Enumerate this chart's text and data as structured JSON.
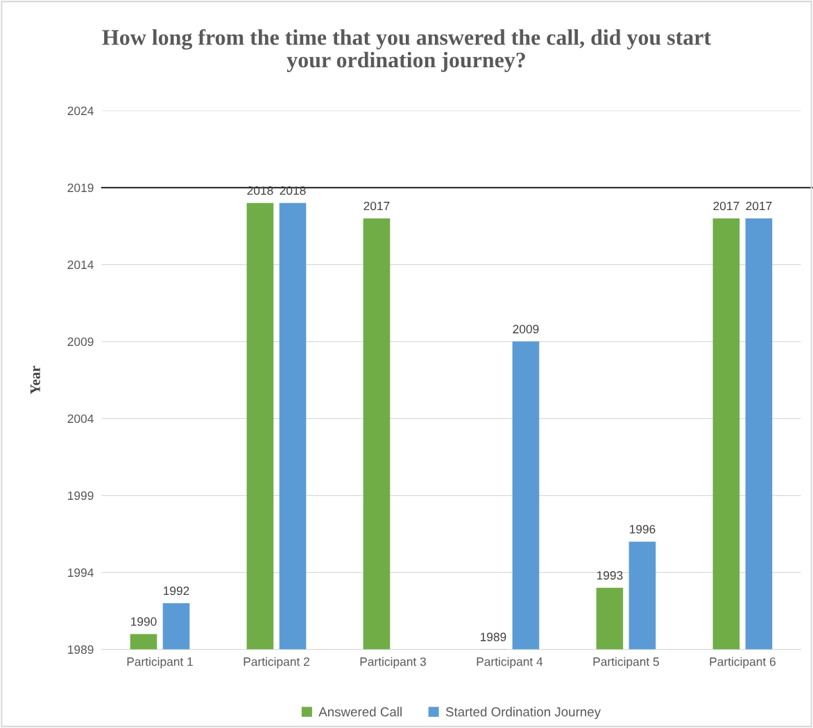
{
  "chart_data": {
    "type": "bar",
    "title": "How long from the time that you answered the call, did you start\nyour ordination journey?",
    "ylabel": "Year",
    "categories": [
      "Participant 1",
      "Participant 2",
      "Participant 3",
      "Participant 4",
      "Participant 5",
      "Participant 6"
    ],
    "series": [
      {
        "name": "Answered Call",
        "color": "#70ad47",
        "values": [
          1990,
          2018,
          2017,
          1989,
          1993,
          2017
        ],
        "value_labels": [
          "1990",
          "2018",
          "2017",
          "1989",
          "1993",
          "2017"
        ]
      },
      {
        "name": "Started Ordination Journey",
        "color": "#5b9bd5",
        "values": [
          1992,
          2018,
          null,
          2009,
          1996,
          2017
        ],
        "value_labels": [
          "1992",
          "2018",
          null,
          "2009",
          "1996",
          "2017"
        ]
      }
    ],
    "ylim": [
      1989,
      2024
    ],
    "yticks": [
      1989,
      1994,
      1999,
      2004,
      2009,
      2014,
      2019,
      2024
    ],
    "grid": "y",
    "legend": "bottom",
    "ref_lines": [
      {
        "axis": "y",
        "value": 2019,
        "color": "#000000"
      }
    ]
  }
}
